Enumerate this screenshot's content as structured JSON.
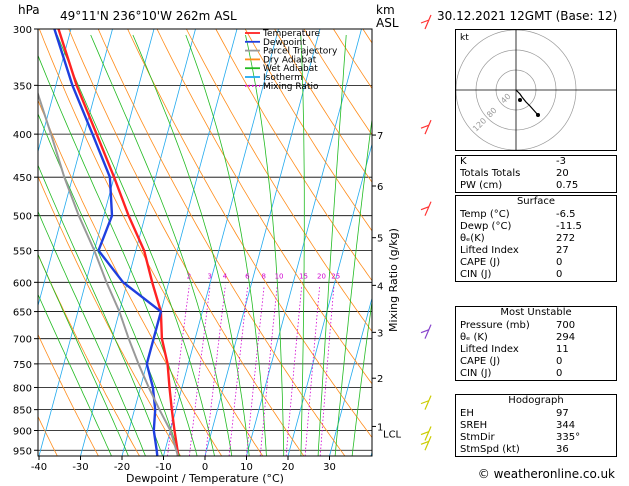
{
  "header": {
    "location": "49°11'N  236°10'W  262m  ASL",
    "datetime": "30.12.2021  12GMT  (Base: 12)",
    "hpa_label": "hPa",
    "km_label": "km",
    "asl_label": "ASL"
  },
  "legend": [
    "Temperature",
    "Dewpoint",
    "Parcel Trajectory",
    "Dry Adiabat",
    "Wet Adiabat",
    "Isotherm",
    "Mixing Ratio"
  ],
  "chart_data": {
    "type": "line",
    "title": "",
    "xlabel": "Dewpoint / Temperature (°C)",
    "ylabel": "hPa",
    "y2label": "Mixing Ratio (g/kg)",
    "pressure_ticks": [
      300,
      350,
      400,
      450,
      500,
      550,
      600,
      650,
      700,
      750,
      800,
      850,
      900,
      950
    ],
    "temp_ticks": [
      -40,
      -30,
      -20,
      -10,
      0,
      10,
      20,
      30
    ],
    "xlim": [
      -40,
      40
    ],
    "ylim": [
      965,
      300
    ],
    "km_ticks": [
      {
        "km": "7",
        "p": 401
      },
      {
        "km": "6",
        "p": 461
      },
      {
        "km": "5",
        "p": 531
      },
      {
        "km": "4",
        "p": 605
      },
      {
        "km": "3",
        "p": 688
      },
      {
        "km": "2",
        "p": 780
      },
      {
        "km": "1",
        "p": 890
      }
    ],
    "lcl_label": "LCL",
    "lcl_p": 900,
    "mixing_ratio_labels": [
      "2",
      "3",
      "4",
      "6",
      "8",
      "10",
      "15",
      "20",
      "25"
    ],
    "mixing_ratios": [
      2,
      3,
      4,
      6,
      8,
      10,
      15,
      20,
      25
    ],
    "series": [
      {
        "name": "Temperature",
        "color": "#ff2222",
        "p": [
          965,
          950,
          900,
          850,
          800,
          750,
          700,
          650,
          600,
          550,
          500,
          450,
          400,
          350,
          300
        ],
        "t": [
          -6.5,
          -7,
          -9,
          -11,
          -13,
          -15,
          -18,
          -20,
          -24,
          -28,
          -34,
          -40,
          -47,
          -55,
          -63
        ]
      },
      {
        "name": "Dewpoint",
        "color": "#1f3fdf",
        "p": [
          965,
          950,
          900,
          850,
          800,
          750,
          700,
          650,
          600,
          550,
          500,
          450,
          400,
          350,
          300
        ],
        "t": [
          -11.5,
          -12,
          -14,
          -15,
          -17,
          -20,
          -20,
          -20,
          -31,
          -39,
          -38,
          -41,
          -48,
          -56,
          -64
        ]
      },
      {
        "name": "Parcel Trajectory",
        "color": "#999999",
        "p": [
          965,
          900,
          850,
          800,
          750,
          700,
          650,
          600,
          550,
          500,
          450,
          400,
          350,
          300
        ],
        "t": [
          -6.5,
          -10,
          -14,
          -18,
          -22,
          -26,
          -30,
          -35,
          -40,
          -46,
          -52,
          -58,
          -65,
          -72
        ]
      }
    ]
  },
  "hodograph": {
    "unit": "kt",
    "ring_labels": [
      "40",
      "80",
      "120"
    ],
    "u": [
      0,
      2,
      4,
      6,
      10,
      14,
      22
    ],
    "v": [
      0,
      -2,
      -4,
      -7,
      -12,
      -16,
      -25
    ]
  },
  "indices": [
    {
      "label": "K",
      "value": "-3"
    },
    {
      "label": "Totals Totals",
      "value": "20"
    },
    {
      "label": "PW (cm)",
      "value": "0.75"
    }
  ],
  "surface": {
    "title": "Surface",
    "rows": [
      {
        "label": "Temp (°C)",
        "value": "-6.5"
      },
      {
        "label": "Dewp (°C)",
        "value": "-11.5"
      },
      {
        "label": "θₑ(K)",
        "value": "272"
      },
      {
        "label": "Lifted Index",
        "value": "27"
      },
      {
        "label": "CAPE (J)",
        "value": "0"
      },
      {
        "label": "CIN (J)",
        "value": "0"
      }
    ]
  },
  "most_unstable": {
    "title": "Most Unstable",
    "rows": [
      {
        "label": "Pressure (mb)",
        "value": "700"
      },
      {
        "label": "θₑ (K)",
        "value": "294"
      },
      {
        "label": "Lifted Index",
        "value": "11"
      },
      {
        "label": "CAPE (J)",
        "value": "0"
      },
      {
        "label": "CIN (J)",
        "value": "0"
      }
    ]
  },
  "hodograph_stats": {
    "title": "Hodograph",
    "rows": [
      {
        "label": "EH",
        "value": "97"
      },
      {
        "label": "SREH",
        "value": "344"
      },
      {
        "label": "StmDir",
        "value": "335°"
      },
      {
        "label": "StmSpd (kt)",
        "value": "36"
      }
    ]
  },
  "footer": {
    "copyright": "© weatheronline.co.uk"
  },
  "colors": {
    "temperature": "#ff2222",
    "dewpoint": "#1f3fdf",
    "parcel": "#999999",
    "dry_adiabat": "#ff8c1a",
    "wet_adiabat": "#22bb22",
    "isotherm": "#22aaee",
    "mixing_ratio": "#d000d0"
  }
}
